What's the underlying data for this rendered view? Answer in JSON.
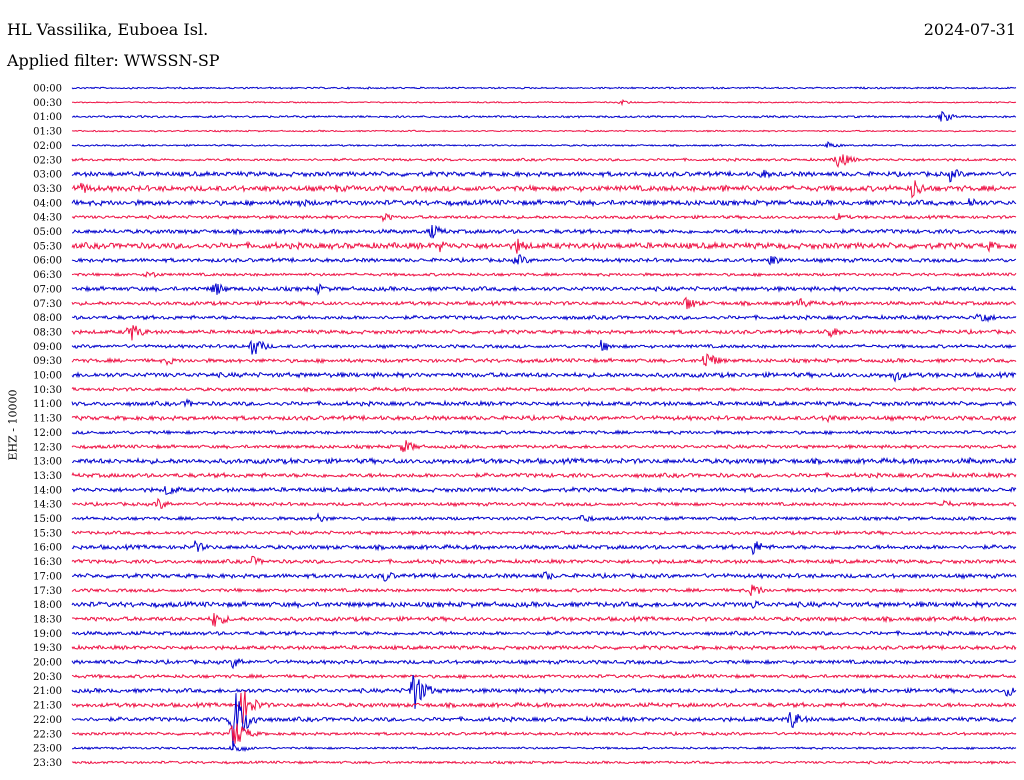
{
  "header": {
    "station": "HL Vassilika, Euboea Isl.",
    "date": "2024-07-31",
    "filter": "Applied filter: WWSSN-SP"
  },
  "chart_data": {
    "type": "line",
    "title": "HL Vassilika, Euboea Isl.",
    "ylabel": "EHZ - 10000",
    "row_labels": [
      "00:00",
      "00:30",
      "01:00",
      "01:30",
      "02:00",
      "02:30",
      "03:00",
      "03:30",
      "04:00",
      "04:30",
      "05:00",
      "05:30",
      "06:00",
      "06:30",
      "07:00",
      "07:30",
      "08:00",
      "08:30",
      "09:00",
      "09:30",
      "10:00",
      "10:30",
      "11:00",
      "11:30",
      "12:00",
      "12:30",
      "13:00",
      "13:30",
      "14:00",
      "14:30",
      "15:00",
      "15:30",
      "16:00",
      "16:30",
      "17:00",
      "17:30",
      "18:00",
      "18:30",
      "19:00",
      "19:30",
      "20:00",
      "20:30",
      "21:00",
      "21:30",
      "22:00",
      "22:30",
      "23:00",
      "23:30"
    ],
    "trace_colors": [
      "#0000cc",
      "#ee1144"
    ],
    "noise_amplitude": [
      0.8,
      0.6,
      1.0,
      0.7,
      0.8,
      1.2,
      2.2,
      2.6,
      2.4,
      1.5,
      2.0,
      2.8,
      1.8,
      1.4,
      2.0,
      1.8,
      1.8,
      1.8,
      1.6,
      1.8,
      2.2,
      1.6,
      2.0,
      2.0,
      1.6,
      1.6,
      2.4,
      2.0,
      2.0,
      1.6,
      1.6,
      1.6,
      2.0,
      1.8,
      2.0,
      1.6,
      2.4,
      2.0,
      1.8,
      1.8,
      1.8,
      1.6,
      2.0,
      2.0,
      2.0,
      1.4,
      1.0,
      1.2
    ],
    "events": [
      {
        "row": 1,
        "pos": 0.58,
        "amp": 3
      },
      {
        "row": 2,
        "pos": 0.92,
        "amp": 7
      },
      {
        "row": 4,
        "pos": 0.8,
        "amp": 4
      },
      {
        "row": 5,
        "pos": 0.81,
        "amp": 11
      },
      {
        "row": 6,
        "pos": 0.73,
        "amp": 6
      },
      {
        "row": 6,
        "pos": 0.93,
        "amp": 8
      },
      {
        "row": 7,
        "pos": 0.01,
        "amp": 7
      },
      {
        "row": 7,
        "pos": 0.28,
        "amp": 5
      },
      {
        "row": 7,
        "pos": 0.69,
        "amp": 6
      },
      {
        "row": 7,
        "pos": 0.89,
        "amp": 12
      },
      {
        "row": 8,
        "pos": 0.24,
        "amp": 6
      },
      {
        "row": 8,
        "pos": 0.95,
        "amp": 7
      },
      {
        "row": 9,
        "pos": 0.33,
        "amp": 5
      },
      {
        "row": 9,
        "pos": 0.81,
        "amp": 5
      },
      {
        "row": 10,
        "pos": 0.38,
        "amp": 9
      },
      {
        "row": 11,
        "pos": 0.39,
        "amp": 7
      },
      {
        "row": 11,
        "pos": 0.47,
        "amp": 10
      },
      {
        "row": 11,
        "pos": 0.97,
        "amp": 6
      },
      {
        "row": 12,
        "pos": 0.47,
        "amp": 8
      },
      {
        "row": 12,
        "pos": 0.74,
        "amp": 7
      },
      {
        "row": 13,
        "pos": 0.08,
        "amp": 5
      },
      {
        "row": 14,
        "pos": 0.15,
        "amp": 9
      },
      {
        "row": 14,
        "pos": 0.26,
        "amp": 6
      },
      {
        "row": 15,
        "pos": 0.65,
        "amp": 9
      },
      {
        "row": 15,
        "pos": 0.77,
        "amp": 7
      },
      {
        "row": 16,
        "pos": 0.96,
        "amp": 9
      },
      {
        "row": 17,
        "pos": 0.06,
        "amp": 12
      },
      {
        "row": 17,
        "pos": 0.8,
        "amp": 8
      },
      {
        "row": 18,
        "pos": 0.19,
        "amp": 12
      },
      {
        "row": 18,
        "pos": 0.56,
        "amp": 7
      },
      {
        "row": 19,
        "pos": 0.1,
        "amp": 5
      },
      {
        "row": 19,
        "pos": 0.67,
        "amp": 12
      },
      {
        "row": 20,
        "pos": 0.87,
        "amp": 8
      },
      {
        "row": 22,
        "pos": 0.12,
        "amp": 5
      },
      {
        "row": 23,
        "pos": 0.8,
        "amp": 5
      },
      {
        "row": 25,
        "pos": 0.35,
        "amp": 9
      },
      {
        "row": 26,
        "pos": 0.95,
        "amp": 4
      },
      {
        "row": 28,
        "pos": 0.1,
        "amp": 8
      },
      {
        "row": 29,
        "pos": 0.09,
        "amp": 7
      },
      {
        "row": 29,
        "pos": 0.92,
        "amp": 6
      },
      {
        "row": 30,
        "pos": 0.26,
        "amp": 5
      },
      {
        "row": 30,
        "pos": 0.54,
        "amp": 6
      },
      {
        "row": 32,
        "pos": 0.13,
        "amp": 7
      },
      {
        "row": 32,
        "pos": 0.72,
        "amp": 10
      },
      {
        "row": 33,
        "pos": 0.19,
        "amp": 6
      },
      {
        "row": 34,
        "pos": 0.33,
        "amp": 7
      },
      {
        "row": 34,
        "pos": 0.5,
        "amp": 6
      },
      {
        "row": 35,
        "pos": 0.72,
        "amp": 8
      },
      {
        "row": 36,
        "pos": 0.72,
        "amp": 6
      },
      {
        "row": 37,
        "pos": 0.15,
        "amp": 10
      },
      {
        "row": 40,
        "pos": 0.17,
        "amp": 7
      },
      {
        "row": 42,
        "pos": 0.36,
        "amp": 25
      },
      {
        "row": 42,
        "pos": 0.99,
        "amp": 7
      },
      {
        "row": 43,
        "pos": 0.18,
        "amp": 20
      },
      {
        "row": 44,
        "pos": 0.17,
        "amp": 38
      },
      {
        "row": 44,
        "pos": 0.76,
        "amp": 12
      },
      {
        "row": 45,
        "pos": 0.17,
        "amp": 18
      },
      {
        "row": 46,
        "pos": 0.17,
        "amp": 8
      }
    ]
  }
}
